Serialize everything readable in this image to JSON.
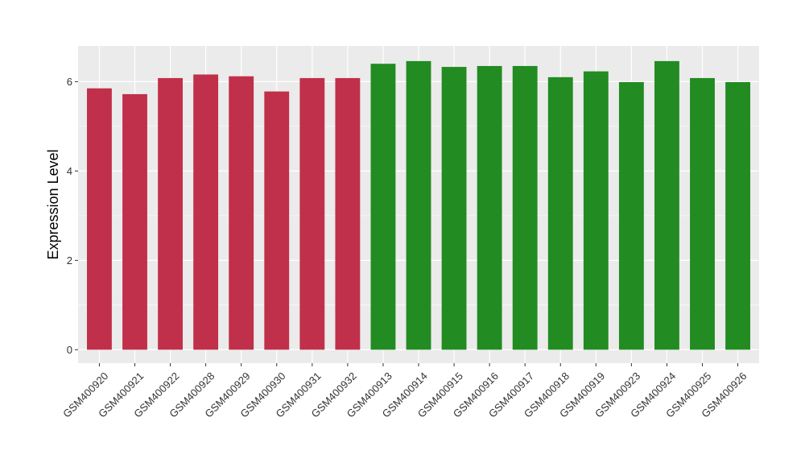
{
  "chart_data": {
    "type": "bar",
    "xlabel": "",
    "ylabel": "Expression Level",
    "ylim": [
      -0.3,
      6.8
    ],
    "yticks": [
      0,
      2,
      4,
      6
    ],
    "grid": true,
    "categories": [
      "GSM400920",
      "GSM400921",
      "GSM400922",
      "GSM400928",
      "GSM400929",
      "GSM400930",
      "GSM400931",
      "GSM400932",
      "GSM400913",
      "GSM400914",
      "GSM400915",
      "GSM400916",
      "GSM400917",
      "GSM400918",
      "GSM400919",
      "GSM400923",
      "GSM400924",
      "GSM400925",
      "GSM400926"
    ],
    "values": [
      5.85,
      5.72,
      6.08,
      6.16,
      6.12,
      5.78,
      6.08,
      6.08,
      6.4,
      6.46,
      6.33,
      6.35,
      6.35,
      6.1,
      6.23,
      5.99,
      6.46,
      6.08,
      5.99
    ],
    "bar_colors": [
      "#C0304A",
      "#C0304A",
      "#C0304A",
      "#C0304A",
      "#C0304A",
      "#C0304A",
      "#C0304A",
      "#C0304A",
      "#228B22",
      "#228B22",
      "#228B22",
      "#228B22",
      "#228B22",
      "#228B22",
      "#228B22",
      "#228B22",
      "#228B22",
      "#228B22",
      "#228B22"
    ],
    "panel_background": "#EBEBEB",
    "gridline_color": "#FFFFFF"
  }
}
